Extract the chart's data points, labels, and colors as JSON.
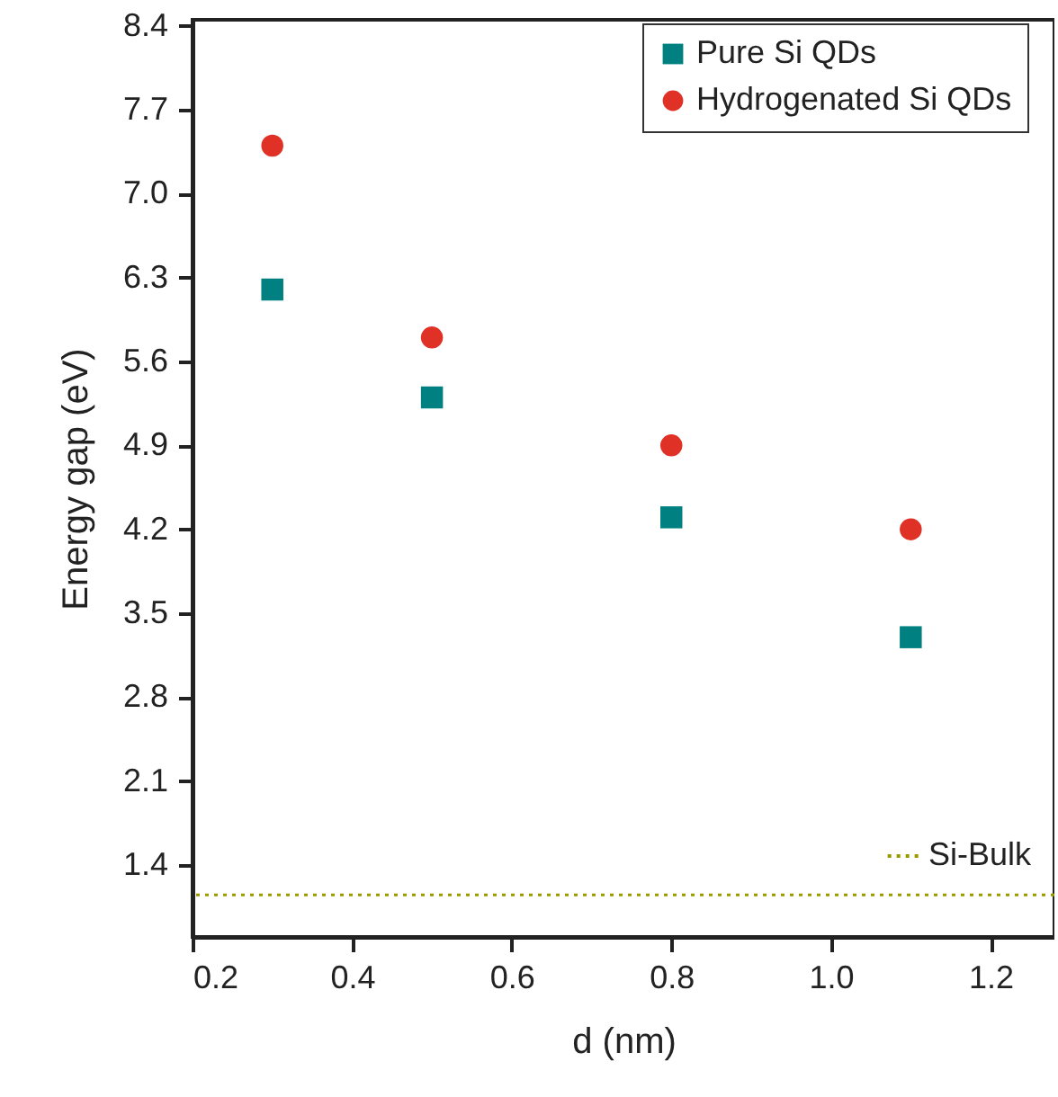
{
  "chart_data": {
    "type": "scatter",
    "xlabel": "d (nm)",
    "ylabel": "Energy gap (eV)",
    "x": [
      0.3,
      0.5,
      0.8,
      1.1
    ],
    "series": [
      {
        "name": "Pure Si QDs",
        "color": "#008080",
        "marker": "square",
        "values": [
          6.2,
          5.3,
          4.3,
          3.3
        ]
      },
      {
        "name": "Hydrogenated Si QDs",
        "color": "#e03127",
        "marker": "circle",
        "values": [
          7.4,
          5.8,
          4.9,
          4.2
        ]
      }
    ],
    "xlim": [
      0.2,
      1.28
    ],
    "xticks": [
      0.2,
      0.4,
      0.6,
      0.8,
      {
        "value": 1,
        "label": "1.0"
      },
      1.2
    ],
    "ylim": [
      0.8,
      8.45
    ],
    "yticks": [
      1.4,
      2.1,
      2.8,
      3.5,
      4.2,
      4.9,
      5.6,
      6.3,
      {
        "value": 7,
        "label": "7.0"
      },
      7.7,
      8.4
    ],
    "ref_lines": [
      {
        "axis": "y",
        "value": 1.15,
        "label": "Si-Bulk",
        "color": "#9a9a00",
        "line_style": "dotted"
      }
    ],
    "legend": "top right",
    "grid": false
  }
}
